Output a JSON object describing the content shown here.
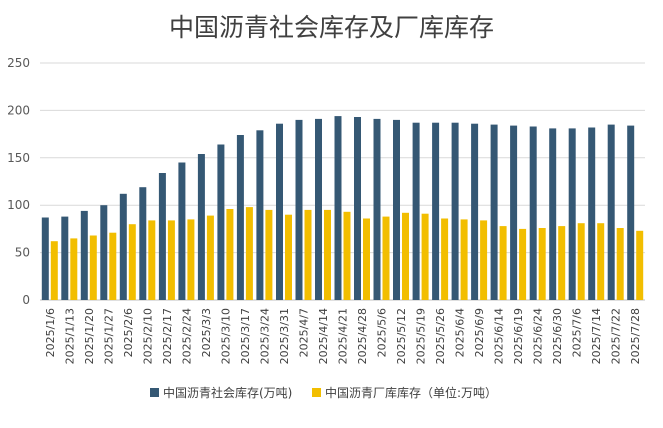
{
  "chart_data": {
    "type": "bar",
    "title": "中国沥青社会库存及厂库库存",
    "categories": [
      "2025/1/6",
      "2025/1/13",
      "2025/1/20",
      "2025/1/27",
      "2025/2/6",
      "2025/2/10",
      "2025/2/17",
      "2025/2/24",
      "2025/3/3",
      "2025/3/10",
      "2025/3/17",
      "2025/3/24",
      "2025/3/31",
      "2025/4/7",
      "2025/4/14",
      "2025/4/21",
      "2025/4/28",
      "2025/5/6",
      "2025/5/12",
      "2025/5/19",
      "2025/5/26",
      "2025/6/4",
      "2025/6/9",
      "2025/6/14",
      "2025/6/19",
      "2025/6/24",
      "2025/6/30",
      "2025/7/6",
      "2025/7/14",
      "2025/7/22",
      "2025/7/28"
    ],
    "series": [
      {
        "name": "中国沥青社会库存(万吨)",
        "color": "#355874",
        "values": [
          87,
          88,
          94,
          100,
          112,
          119,
          134,
          145,
          154,
          164,
          174,
          179,
          186,
          190,
          191,
          194,
          193,
          191,
          190,
          187,
          187,
          187,
          186,
          185,
          184,
          183,
          181,
          181,
          182,
          185,
          184
        ]
      },
      {
        "name": "中国沥青厂库库存（单位:万吨）",
        "color": "#F2BE00",
        "values": [
          62,
          65,
          68,
          71,
          80,
          84,
          84,
          85,
          89,
          96,
          98,
          95,
          90,
          95,
          95,
          93,
          86,
          88,
          92,
          91,
          86,
          85,
          84,
          78,
          75,
          76,
          78,
          81,
          81,
          76,
          73
        ]
      }
    ],
    "y_ticks": [
      "0",
      "50",
      "100",
      "150",
      "200",
      "250"
    ],
    "ylim": [
      0,
      250
    ],
    "grid": true,
    "legend_position": "bottom"
  }
}
